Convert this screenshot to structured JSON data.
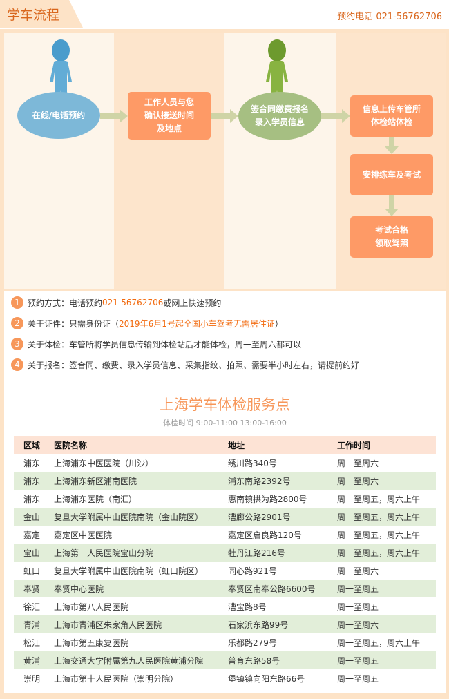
{
  "header": {
    "title": "学车流程",
    "phone": "预约电话 021-56762706"
  },
  "flow": {
    "steps": [
      "在线/电话预约",
      "工作人员与您\n确认接送时间\n及地点",
      "签合同缴费报名\n录入学员信息",
      "信息上传车管所\n体检站体检",
      "安排练车及考试",
      "考试合格\n领取驾照"
    ]
  },
  "notes": [
    {
      "num": "1",
      "label": "预约方式：",
      "text": "电话预约 ",
      "highlight": "021-56762706",
      "after": " 或网上快速预约"
    },
    {
      "num": "2",
      "label": "关于证件：",
      "text": "只需身份证（",
      "highlight": "2019年6月1号起全国小车驾考无需居住证",
      "after": "）"
    },
    {
      "num": "3",
      "label": "关于体检：",
      "text": "车管所将学员信息传输到体检站后才能体检，周一至周六都可以",
      "highlight": "",
      "after": ""
    },
    {
      "num": "4",
      "label": "关于报名：",
      "text": "签合同、缴费、录入学员信息、采集指纹、拍照、需要半小时左右，请提前约好",
      "highlight": "",
      "after": ""
    }
  ],
  "service": {
    "title": "上海学车体检服务点",
    "hours": "体检时间 9:00-11:00  13:00-16:00"
  },
  "table": {
    "headers": [
      "区域",
      "医院名称",
      "地址",
      "工作时间"
    ],
    "rows": [
      [
        "浦东",
        "上海浦东中医医院（川沙）",
        "绣川路340号",
        "周一至周六"
      ],
      [
        "浦东",
        "上海浦东新区浦南医院",
        "浦东南路2392号",
        "周一至周六"
      ],
      [
        "浦东",
        "上海浦东医院（南汇）",
        "惠南镇拱为路2800号",
        "周一至周五，周六上午"
      ],
      [
        "金山",
        "复旦大学附属中山医院南院（金山院区）",
        "漕廊公路2901号",
        "周一至周五，周六上午"
      ],
      [
        "嘉定",
        "嘉定区中医医院",
        "嘉定区启良路120号",
        "周一至周五，周六上午"
      ],
      [
        "宝山",
        "上海第一人民医院宝山分院",
        "牡丹江路216号",
        "周一至周五，周六上午"
      ],
      [
        "虹口",
        "复旦大学附属中山医院南院（虹口院区）",
        "同心路921号",
        "周一至周六"
      ],
      [
        "奉贤",
        "奉贤中心医院",
        "奉贤区南奉公路6600号",
        "周一至周五"
      ],
      [
        "徐汇",
        "上海市第八人民医院",
        "漕宝路8号",
        "周一至周五"
      ],
      [
        "青浦",
        "上海市青浦区朱家角人民医院",
        "石家浜东路99号",
        "周一至周六"
      ],
      [
        "松江",
        "上海市第五康复医院",
        "乐都路279号",
        "周一至周五，周六上午"
      ],
      [
        "黄浦",
        "上海交通大学附属第九人民医院黄浦分院",
        "普育东路58号",
        "周一至周五"
      ],
      [
        "崇明",
        "上海市第十人民医院（崇明分院）",
        "堡镇镇向阳东路66号",
        "周一至周五"
      ]
    ]
  },
  "colors": {
    "accent": "#f26a0e",
    "peach": "#fde3c7",
    "blue": "#7db8d8",
    "green": "#a6bf82",
    "orange": "#fe9a66",
    "rowAlt": "#e2eed9"
  }
}
